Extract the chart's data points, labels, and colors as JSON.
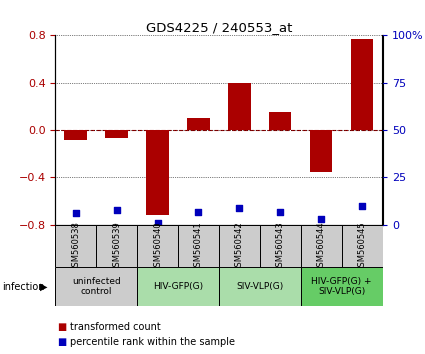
{
  "title": "GDS4225 / 240553_at",
  "samples": [
    "GSM560538",
    "GSM560539",
    "GSM560540",
    "GSM560541",
    "GSM560542",
    "GSM560543",
    "GSM560544",
    "GSM560545"
  ],
  "bar_values": [
    -0.08,
    -0.07,
    -0.72,
    0.1,
    0.4,
    0.15,
    -0.35,
    0.77
  ],
  "dot_percentile": [
    6,
    8,
    1,
    7,
    9,
    7,
    3,
    10
  ],
  "bar_color": "#aa0000",
  "dot_color": "#0000bb",
  "ylim_left": [
    -0.8,
    0.8
  ],
  "ylim_right": [
    0,
    100
  ],
  "yticks_left": [
    -0.8,
    -0.4,
    0,
    0.4,
    0.8
  ],
  "yticks_right": [
    0,
    25,
    50,
    75,
    100
  ],
  "ytick_right_labels": [
    "0",
    "25",
    "50",
    "75",
    "100%"
  ],
  "groups": [
    {
      "label": "uninfected\ncontrol",
      "start": 0,
      "end": 2,
      "color": "#cccccc"
    },
    {
      "label": "HIV-GFP(G)",
      "start": 2,
      "end": 4,
      "color": "#aaddaa"
    },
    {
      "label": "SIV-VLP(G)",
      "start": 4,
      "end": 6,
      "color": "#aaddaa"
    },
    {
      "label": "HIV-GFP(G) +\nSIV-VLP(G)",
      "start": 6,
      "end": 8,
      "color": "#66cc66"
    }
  ],
  "legend_bar_label": "transformed count",
  "legend_dot_label": "percentile rank within the sample",
  "infection_label": "infection"
}
